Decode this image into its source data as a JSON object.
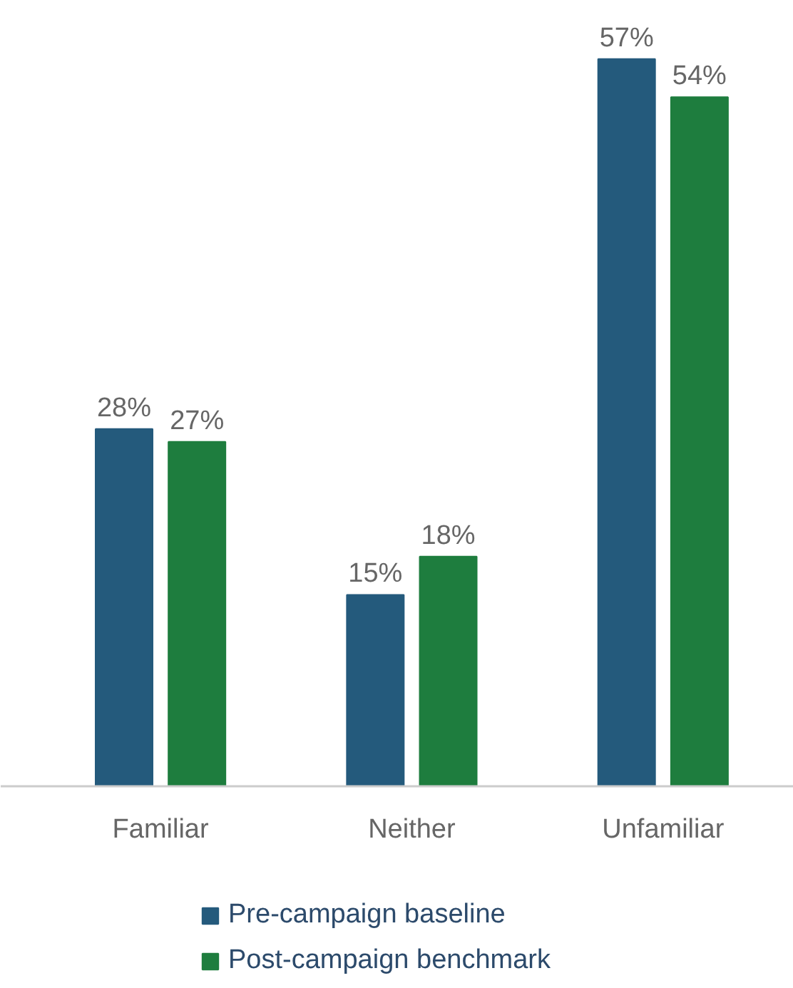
{
  "chart_data": {
    "type": "bar",
    "categories": [
      "Familiar",
      "Neither",
      "Unfamiliar"
    ],
    "series": [
      {
        "name": "Pre-campaign baseline",
        "color": "#245a7c",
        "values": [
          28,
          15,
          57
        ],
        "value_labels": [
          "28%",
          "15%",
          "57%"
        ]
      },
      {
        "name": "Post-campaign benchmark",
        "color": "#1e7d3e",
        "values": [
          27,
          18,
          54
        ],
        "value_labels": [
          "27%",
          "18%",
          "54%"
        ]
      }
    ],
    "legend": "bottom"
  }
}
